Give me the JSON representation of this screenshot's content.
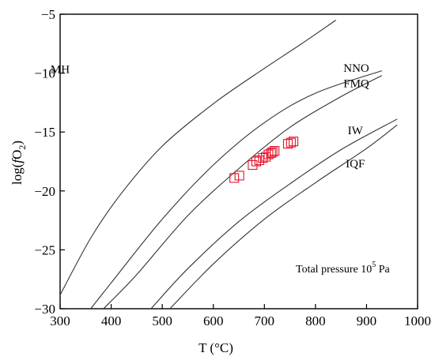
{
  "chart_data": {
    "type": "line",
    "title": "",
    "xlabel": "T (°C)",
    "ylabel_parts": [
      "log(",
      "f",
      "O",
      "2",
      ")"
    ],
    "xlim": [
      300,
      1000
    ],
    "ylim": [
      -30,
      -5
    ],
    "xticks": [
      300,
      400,
      500,
      600,
      700,
      800,
      900,
      1000
    ],
    "yticks": [
      -5,
      -10,
      -15,
      -20,
      -25,
      -30
    ],
    "grid": false,
    "annotation": {
      "text": "Total pressure 10",
      "superscript": "5",
      "unit": " Pa"
    },
    "series": [
      {
        "name": "MH",
        "label_at": [
          300,
          -10
        ],
        "points": [
          [
            298,
            -29
          ],
          [
            360,
            -24
          ],
          [
            420,
            -20.2
          ],
          [
            500,
            -16.2
          ],
          [
            600,
            -12.6
          ],
          [
            700,
            -9.6
          ],
          [
            780,
            -7.3
          ],
          [
            840,
            -5.5
          ]
        ]
      },
      {
        "name": "NNO",
        "label_at": [
          880,
          -9.9
        ],
        "points": [
          [
            360,
            -30
          ],
          [
            400,
            -27.8
          ],
          [
            500,
            -22.4
          ],
          [
            600,
            -17.8
          ],
          [
            700,
            -14.2
          ],
          [
            800,
            -11.7
          ],
          [
            930,
            -9.8
          ]
        ]
      },
      {
        "name": "FMQ",
        "label_at": [
          880,
          -11.2
        ],
        "points": [
          [
            385,
            -30
          ],
          [
            450,
            -27.1
          ],
          [
            550,
            -22.1
          ],
          [
            650,
            -18.1
          ],
          [
            750,
            -14.6
          ],
          [
            850,
            -12.0
          ],
          [
            930,
            -10.2
          ]
        ]
      },
      {
        "name": "IW",
        "label_at": [
          878,
          -15.2
        ],
        "points": [
          [
            478,
            -30
          ],
          [
            550,
            -26.6
          ],
          [
            650,
            -22.6
          ],
          [
            750,
            -19.4
          ],
          [
            850,
            -16.5
          ],
          [
            960,
            -13.9
          ]
        ]
      },
      {
        "name": "IQF",
        "label_at": [
          878,
          -18.0
        ],
        "points": [
          [
            515,
            -30
          ],
          [
            600,
            -26.2
          ],
          [
            700,
            -22.4
          ],
          [
            800,
            -19.3
          ],
          [
            900,
            -16.4
          ],
          [
            960,
            -14.4
          ]
        ]
      }
    ],
    "scatter": {
      "marker": "square-open",
      "color": "#e8132c",
      "points": [
        [
          641,
          -18.9
        ],
        [
          651,
          -18.7
        ],
        [
          677,
          -17.8
        ],
        [
          684,
          -17.5
        ],
        [
          690,
          -17.4
        ],
        [
          697,
          -17.2
        ],
        [
          703,
          -17.1
        ],
        [
          708,
          -16.9
        ],
        [
          713,
          -16.8
        ],
        [
          716,
          -16.7
        ],
        [
          720,
          -16.6
        ],
        [
          746,
          -16.0
        ],
        [
          752,
          -15.9
        ],
        [
          757,
          -15.8
        ]
      ]
    },
    "line_color": "#333333"
  }
}
